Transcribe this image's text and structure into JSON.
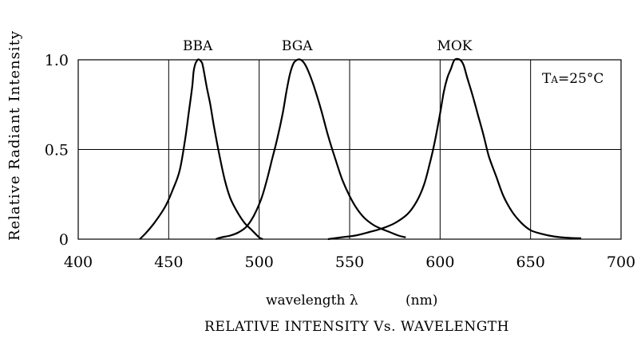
{
  "chart_data": {
    "type": "line",
    "title": "RELATIVE INTENSITY Vs. WAVELENGTH",
    "xlabel": "wavelength λ (nm)",
    "xlabel_text": "wavelength λ",
    "xlabel_unit": "(nm)",
    "ylabel": "Relative Radiant Intensity",
    "xlim": [
      400,
      700
    ],
    "ylim": [
      0,
      1.0
    ],
    "x_ticks": [
      400,
      450,
      500,
      550,
      600,
      650,
      700
    ],
    "y_ticks": [
      {
        "value": 0,
        "label": "0"
      },
      {
        "value": 0.5,
        "label": "0.5"
      },
      {
        "value": 1.0,
        "label": "1.0"
      }
    ],
    "grid": true,
    "annotation": "TA=25°C",
    "annotation_parts": {
      "t": "T",
      "sub": "A",
      "rest": "=25°C"
    },
    "series": [
      {
        "name": "BBA",
        "points": [
          [
            434,
            0
          ],
          [
            437,
            0.03
          ],
          [
            442,
            0.09
          ],
          [
            448,
            0.18
          ],
          [
            452,
            0.27
          ],
          [
            456,
            0.38
          ],
          [
            459,
            0.55
          ],
          [
            461,
            0.7
          ],
          [
            463,
            0.85
          ],
          [
            464,
            0.95
          ],
          [
            466,
            1.0
          ],
          [
            468,
            0.99
          ],
          [
            469,
            0.96
          ],
          [
            471,
            0.85
          ],
          [
            473,
            0.75
          ],
          [
            475,
            0.63
          ],
          [
            478,
            0.47
          ],
          [
            481,
            0.33
          ],
          [
            484,
            0.23
          ],
          [
            488,
            0.15
          ],
          [
            492,
            0.09
          ],
          [
            496,
            0.05
          ],
          [
            500,
            0.01
          ],
          [
            502,
            0
          ]
        ]
      },
      {
        "name": "BGA",
        "points": [
          [
            476,
            0
          ],
          [
            479,
            0.01
          ],
          [
            484,
            0.02
          ],
          [
            489,
            0.04
          ],
          [
            493,
            0.07
          ],
          [
            497,
            0.13
          ],
          [
            501,
            0.22
          ],
          [
            504,
            0.32
          ],
          [
            507,
            0.44
          ],
          [
            510,
            0.56
          ],
          [
            513,
            0.7
          ],
          [
            515,
            0.82
          ],
          [
            517,
            0.92
          ],
          [
            519,
            0.98
          ],
          [
            521,
            1.0
          ],
          [
            523,
            1.0
          ],
          [
            525,
            0.98
          ],
          [
            527,
            0.94
          ],
          [
            530,
            0.86
          ],
          [
            534,
            0.73
          ],
          [
            538,
            0.58
          ],
          [
            542,
            0.45
          ],
          [
            546,
            0.33
          ],
          [
            550,
            0.24
          ],
          [
            554,
            0.17
          ],
          [
            558,
            0.12
          ],
          [
            563,
            0.08
          ],
          [
            567,
            0.06
          ],
          [
            572,
            0.04
          ],
          [
            577,
            0.02
          ],
          [
            581,
            0.01
          ]
        ]
      },
      {
        "name": "MOK",
        "points": [
          [
            538,
            0
          ],
          [
            545,
            0.01
          ],
          [
            553,
            0.02
          ],
          [
            561,
            0.04
          ],
          [
            568,
            0.06
          ],
          [
            575,
            0.09
          ],
          [
            582,
            0.14
          ],
          [
            587,
            0.21
          ],
          [
            591,
            0.3
          ],
          [
            594,
            0.41
          ],
          [
            597,
            0.54
          ],
          [
            600,
            0.7
          ],
          [
            602,
            0.82
          ],
          [
            604,
            0.9
          ],
          [
            606,
            0.95
          ],
          [
            608,
            1.0
          ],
          [
            611,
            1.0
          ],
          [
            613,
            0.97
          ],
          [
            615,
            0.9
          ],
          [
            618,
            0.8
          ],
          [
            621,
            0.69
          ],
          [
            624,
            0.58
          ],
          [
            627,
            0.46
          ],
          [
            631,
            0.35
          ],
          [
            635,
            0.24
          ],
          [
            640,
            0.15
          ],
          [
            645,
            0.09
          ],
          [
            650,
            0.05
          ],
          [
            656,
            0.03
          ],
          [
            663,
            0.015
          ],
          [
            670,
            0.008
          ],
          [
            678,
            0.005
          ]
        ]
      }
    ]
  }
}
